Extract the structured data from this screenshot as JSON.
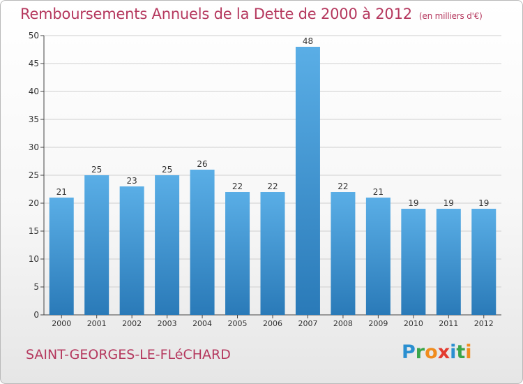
{
  "header": {
    "title": "Remboursements Annuels de la Dette de 2000 à 2012",
    "unit": "(en milliers d'€)"
  },
  "footer": {
    "commune": "SAINT-GEORGES-LE-FLéCHARD",
    "brand_letters": [
      "P",
      "r",
      "o",
      "x",
      "i",
      "t",
      "i"
    ],
    "brand_colors": [
      "#2a8fd0",
      "#3aa54a",
      "#f08c1e",
      "#e33a2f",
      "#2a8fd0",
      "#3aa54a",
      "#f08c1e"
    ]
  },
  "colors": {
    "bar_top": "#5aaee6",
    "bar_bottom": "#2a7ab8",
    "title": "#b5385e",
    "grid": "#cfcfcf"
  },
  "chart_data": {
    "type": "bar",
    "categories": [
      "2000",
      "2001",
      "2002",
      "2003",
      "2004",
      "2005",
      "2006",
      "2007",
      "2008",
      "2009",
      "2010",
      "2011",
      "2012"
    ],
    "values": [
      21,
      25,
      23,
      25,
      26,
      22,
      22,
      48,
      22,
      21,
      19,
      19,
      19
    ],
    "data_labels": [
      "21",
      "25",
      "23",
      "25",
      "26",
      "22",
      "22",
      "48",
      "22",
      "21",
      "19",
      "19",
      "19"
    ],
    "title": "Remboursements Annuels de la Dette de 2000 à 2012",
    "xlabel": "",
    "ylabel": "",
    "ylim": [
      0,
      50
    ],
    "yticks": [
      0,
      5,
      10,
      15,
      20,
      25,
      30,
      35,
      40,
      45,
      50
    ],
    "grid": true,
    "legend": "none"
  }
}
